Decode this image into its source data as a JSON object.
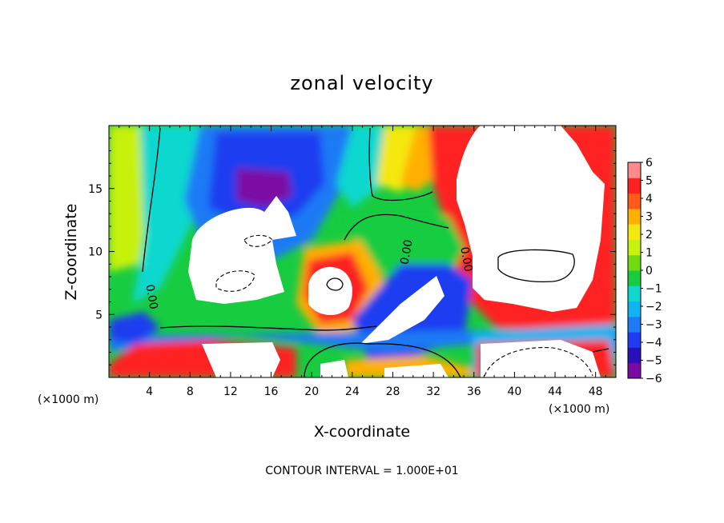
{
  "chart_data": {
    "type": "heatmap",
    "title": "zonal velocity",
    "xlabel": "X-coordinate",
    "ylabel": "Z-coordinate",
    "x_unit_left": "(×1000 m)",
    "x_unit_right": "(×1000 m)",
    "xlim": [
      0,
      50
    ],
    "ylim": [
      0,
      20
    ],
    "x_ticks": [
      4,
      8,
      12,
      16,
      20,
      24,
      28,
      32,
      36,
      40,
      44,
      48
    ],
    "y_ticks": [
      5,
      10,
      15
    ],
    "colorbar": {
      "levels": [
        -6,
        -5,
        -4,
        -3,
        -2,
        -1,
        0,
        1,
        2,
        3,
        4,
        5,
        6
      ],
      "labels": [
        "6",
        "5",
        "4",
        "3",
        "2",
        "1",
        "0",
        "−1",
        "−2",
        "−3",
        "−4",
        "−5",
        "−6"
      ],
      "colors": [
        "#7b0aa5",
        "#2a10b8",
        "#1f3cf0",
        "#1f7af5",
        "#10b4f0",
        "#10d8d0",
        "#18cc40",
        "#70dc10",
        "#c8f010",
        "#f5e810",
        "#ffb000",
        "#ff5a1a",
        "#ff2020",
        "#ff8a8a"
      ]
    },
    "contour_labels": [
      "0.00",
      "0.00",
      "0.00"
    ],
    "note": "CONTOUR INTERVAL = 1.000E+01"
  }
}
